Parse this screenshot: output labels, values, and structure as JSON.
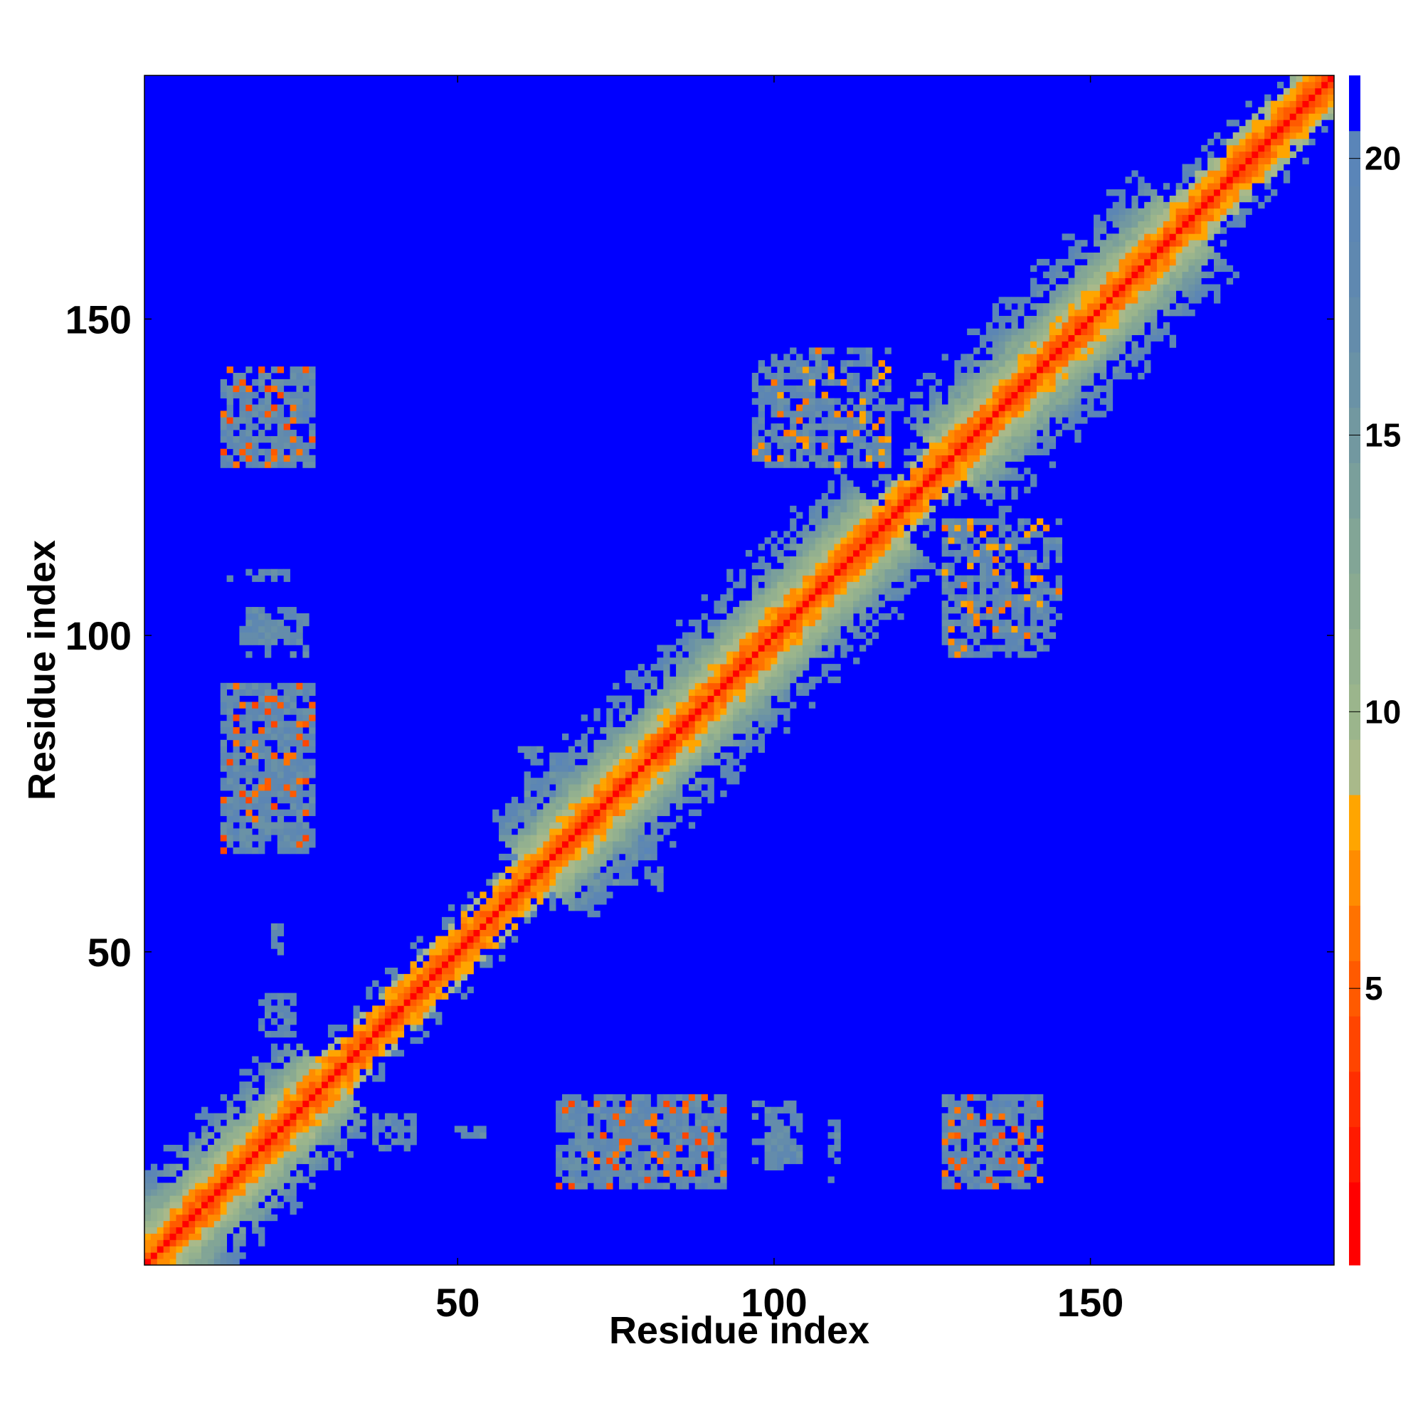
{
  "chart_data": {
    "type": "heatmap",
    "title": "",
    "xlabel": "Residue index",
    "ylabel": "Residue index",
    "n_residues": 188,
    "xlim": [
      1,
      188
    ],
    "ylim": [
      1,
      188
    ],
    "x_ticks": [
      50,
      100,
      150
    ],
    "y_ticks": [
      50,
      100,
      150
    ],
    "grid": false,
    "background_value": 21.5,
    "colorbar": {
      "range": [
        0,
        21.5
      ],
      "ticks": [
        5,
        10,
        15,
        20
      ],
      "levels": [
        {
          "max": 1.5,
          "color": "#ff0000"
        },
        {
          "max": 2.5,
          "color": "#ff1a00"
        },
        {
          "max": 3.5,
          "color": "#ff2e00"
        },
        {
          "max": 4.5,
          "color": "#ff4500"
        },
        {
          "max": 5.5,
          "color": "#ff5a00"
        },
        {
          "max": 6.5,
          "color": "#ff7200"
        },
        {
          "max": 7.5,
          "color": "#ff8c00"
        },
        {
          "max": 8.5,
          "color": "#ffa500"
        },
        {
          "max": 9.5,
          "color": "#a9b98a"
        },
        {
          "max": 10.5,
          "color": "#9bb58c"
        },
        {
          "max": 11.5,
          "color": "#93b08f"
        },
        {
          "max": 12.5,
          "color": "#8aaa91"
        },
        {
          "max": 13.5,
          "color": "#82a596"
        },
        {
          "max": 14.5,
          "color": "#7a9f9b"
        },
        {
          "max": 15.5,
          "color": "#7298a0"
        },
        {
          "max": 16.5,
          "color": "#6a92a6"
        },
        {
          "max": 17.5,
          "color": "#648cab"
        },
        {
          "max": 18.5,
          "color": "#5f88b0"
        },
        {
          "max": 19.5,
          "color": "#5c86b4"
        },
        {
          "max": 20.5,
          "color": "#5a85b8"
        },
        {
          "max": 21.5,
          "color": "#0000ff"
        }
      ]
    },
    "diagonal_band": [
      {
        "from": 1,
        "to": 8,
        "halfwidth": 16
      },
      {
        "from": 8,
        "to": 30,
        "halfwidth": 12
      },
      {
        "from": 30,
        "to": 62,
        "halfwidth": 5
      },
      {
        "from": 62,
        "to": 118,
        "halfwidth": 14
      },
      {
        "from": 118,
        "to": 127,
        "halfwidth": 5
      },
      {
        "from": 127,
        "to": 165,
        "halfwidth": 14
      },
      {
        "from": 165,
        "to": 188,
        "halfwidth": 6
      }
    ],
    "off_diagonal_contacts": [
      {
        "x_range": [
          13,
          27
        ],
        "y_range": [
          127,
          142
        ],
        "min_value": 4,
        "density": 0.55
      },
      {
        "x_range": [
          13,
          27
        ],
        "y_range": [
          68,
          92
        ],
        "min_value": 4,
        "density": 0.6
      },
      {
        "x_range": [
          17,
          26
        ],
        "y_range": [
          99,
          104
        ],
        "min_value": 16,
        "density": 0.55
      },
      {
        "x_range": [
          20,
          23
        ],
        "y_range": [
          37,
          44
        ],
        "min_value": 17,
        "density": 0.45
      },
      {
        "x_range": [
          21,
          22
        ],
        "y_range": [
          50,
          54
        ],
        "min_value": 17,
        "density": 0.6
      },
      {
        "x_range": [
          66,
          92
        ],
        "y_range": [
          13,
          27
        ],
        "min_value": 4,
        "density": 0.6
      },
      {
        "x_range": [
          97,
          103
        ],
        "y_range": [
          16,
          26
        ],
        "min_value": 16,
        "density": 0.55
      },
      {
        "x_range": [
          109,
          110
        ],
        "y_range": [
          14,
          23
        ],
        "min_value": 17,
        "density": 0.5
      },
      {
        "x_range": [
          37,
          43
        ],
        "y_range": [
          19,
          24
        ],
        "min_value": 17,
        "density": 0.45
      },
      {
        "x_range": [
          127,
          142
        ],
        "y_range": [
          13,
          27
        ],
        "min_value": 4,
        "density": 0.55
      },
      {
        "x_range": [
          97,
          118
        ],
        "y_range": [
          127,
          142
        ],
        "min_value": 6,
        "density": 0.45
      },
      {
        "x_range": [
          127,
          145
        ],
        "y_range": [
          97,
          118
        ],
        "min_value": 6,
        "density": 0.45
      },
      {
        "x_range": [
          60,
          68
        ],
        "y_range": [
          63,
          82
        ],
        "min_value": 15,
        "density": 0.4
      }
    ]
  },
  "colors": {
    "background": "#0000ff",
    "frame": "#000000",
    "page": "#ffffff"
  }
}
